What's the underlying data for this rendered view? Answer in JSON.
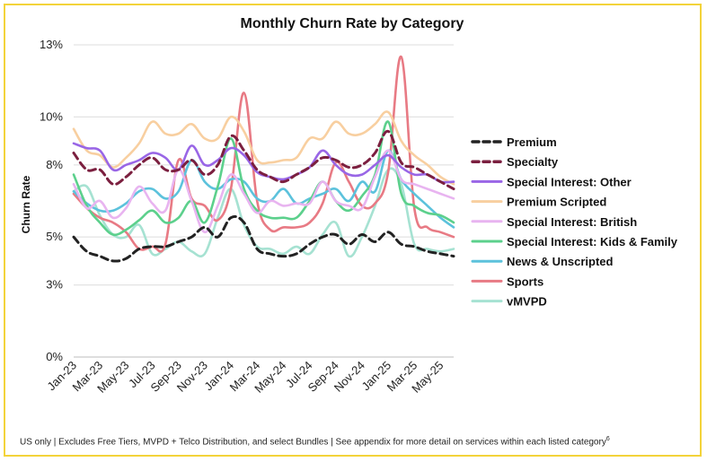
{
  "chart_data": {
    "type": "line",
    "title": "Monthly Churn Rate by Category",
    "xlabel": "",
    "ylabel": "Churn Rate",
    "ylim": [
      0,
      13
    ],
    "yticks": [
      0,
      3,
      5,
      8,
      10,
      13
    ],
    "ytick_labels": [
      "0%",
      "3%",
      "5%",
      "8%",
      "10%",
      "13%"
    ],
    "x": [
      "Jan-23",
      "Feb-23",
      "Mar-23",
      "Apr-23",
      "May-23",
      "Jun-23",
      "Jul-23",
      "Aug-23",
      "Sep-23",
      "Oct-23",
      "Nov-23",
      "Dec-23",
      "Jan-24",
      "Feb-24",
      "Mar-24",
      "Apr-24",
      "May-24",
      "Jun-24",
      "Jul-24",
      "Aug-24",
      "Sep-24",
      "Oct-24",
      "Nov-24",
      "Dec-24",
      "Jan-25",
      "Feb-25",
      "Mar-25",
      "Apr-25",
      "May-25",
      "Jun-25"
    ],
    "xtick_labels": [
      "Jan-23",
      "Mar-23",
      "May-23",
      "Jul-23",
      "Sep-23",
      "Nov-23",
      "Jan-24",
      "Mar-24",
      "May-24",
      "Jul-24",
      "Sep-24",
      "Nov-24",
      "Jan-25",
      "Mar-25",
      "May-25"
    ],
    "legend_position": "right",
    "grid": true,
    "series": [
      {
        "name": "Premium",
        "color": "#222222",
        "dash": true,
        "values": [
          5.0,
          4.4,
          4.2,
          4.0,
          4.1,
          4.5,
          4.6,
          4.6,
          4.8,
          5.0,
          5.4,
          5.0,
          5.8,
          5.6,
          4.5,
          4.3,
          4.2,
          4.3,
          4.7,
          5.0,
          5.1,
          4.7,
          5.1,
          4.8,
          5.2,
          4.7,
          4.6,
          4.4,
          4.3,
          4.2
        ]
      },
      {
        "name": "Specialty",
        "color": "#7b1f3f",
        "dash": true,
        "values": [
          8.5,
          7.8,
          7.8,
          7.2,
          7.5,
          8.0,
          8.3,
          7.8,
          7.8,
          8.2,
          7.6,
          8.0,
          9.2,
          8.6,
          7.8,
          7.5,
          7.3,
          7.6,
          7.9,
          8.3,
          8.2,
          7.9,
          8.0,
          8.5,
          9.4,
          8.1,
          7.9,
          7.6,
          7.3,
          7.0
        ]
      },
      {
        "name": "Special Interest: Other",
        "color": "#9966e6",
        "dash": false,
        "values": [
          8.9,
          8.7,
          8.6,
          7.8,
          8.0,
          8.2,
          8.5,
          8.3,
          7.8,
          8.8,
          8.0,
          8.2,
          8.7,
          8.4,
          7.7,
          7.5,
          7.4,
          7.6,
          7.9,
          8.6,
          8.0,
          7.6,
          7.6,
          8.0,
          8.4,
          7.9,
          7.6,
          7.6,
          7.3,
          7.3
        ]
      },
      {
        "name": "Premium Scripted",
        "color": "#f8cfa0",
        "dash": false,
        "values": [
          9.5,
          8.6,
          8.4,
          7.9,
          8.3,
          8.9,
          9.8,
          9.3,
          9.3,
          9.7,
          9.1,
          9.1,
          10.0,
          9.4,
          8.2,
          8.1,
          8.2,
          8.3,
          9.1,
          9.1,
          9.8,
          9.3,
          9.3,
          9.7,
          10.2,
          9.0,
          8.4,
          8.0,
          7.5,
          7.2
        ]
      },
      {
        "name": "Special Interest: British",
        "color": "#e8b4f0",
        "dash": false,
        "values": [
          7.2,
          6.2,
          6.5,
          5.8,
          6.2,
          7.1,
          6.4,
          6.1,
          7.8,
          6.5,
          5.2,
          6.3,
          7.6,
          6.8,
          6.0,
          6.5,
          6.3,
          6.4,
          6.4,
          7.3,
          6.5,
          6.3,
          6.2,
          7.5,
          8.6,
          7.4,
          7.2,
          7.0,
          6.8,
          6.6
        ]
      },
      {
        "name": "Special Interest: Kids & Family",
        "color": "#5cd08c",
        "dash": false,
        "values": [
          7.6,
          6.3,
          5.6,
          5.1,
          5.3,
          5.7,
          6.1,
          5.6,
          5.8,
          6.5,
          5.6,
          7.1,
          9.1,
          7.0,
          6.1,
          5.8,
          5.8,
          5.8,
          6.5,
          7.3,
          6.5,
          6.1,
          6.7,
          7.6,
          9.8,
          6.8,
          6.3,
          6.0,
          5.9,
          5.6
        ]
      },
      {
        "name": "News & Unscripted",
        "color": "#5cc2dc",
        "dash": false,
        "values": [
          6.9,
          6.4,
          6.1,
          6.1,
          6.4,
          6.9,
          7.0,
          6.6,
          6.9,
          8.2,
          7.3,
          7.0,
          7.4,
          7.3,
          6.6,
          6.5,
          7.0,
          6.4,
          6.6,
          6.8,
          7.0,
          6.5,
          7.3,
          6.9,
          8.6,
          7.4,
          6.8,
          6.3,
          5.8,
          5.4
        ]
      },
      {
        "name": "Sports",
        "color": "#e87a84",
        "dash": false,
        "values": [
          6.8,
          6.2,
          5.8,
          5.6,
          5.2,
          4.5,
          4.6,
          4.7,
          8.2,
          6.6,
          6.3,
          5.7,
          7.0,
          11.0,
          6.5,
          5.3,
          5.4,
          5.4,
          5.6,
          6.4,
          8.1,
          7.3,
          6.3,
          6.4,
          7.7,
          12.5,
          6.2,
          5.4,
          5.2,
          5.0
        ]
      },
      {
        "name": "vMVPD",
        "color": "#a6e2d2",
        "dash": false,
        "values": [
          6.9,
          7.1,
          5.9,
          5.1,
          5.0,
          5.5,
          4.3,
          4.5,
          4.8,
          4.4,
          4.3,
          5.8,
          7.0,
          5.5,
          4.6,
          4.5,
          4.3,
          4.6,
          4.3,
          5.1,
          5.6,
          4.2,
          5.0,
          6.3,
          7.8,
          7.2,
          4.7,
          4.5,
          4.4,
          4.5
        ]
      }
    ]
  },
  "footnote": {
    "text": "US only | Excludes Free Tiers, MVPD + Telco Distribution, and select Bundles | See appendix for more detail on services within each listed category",
    "superscript": "6"
  }
}
